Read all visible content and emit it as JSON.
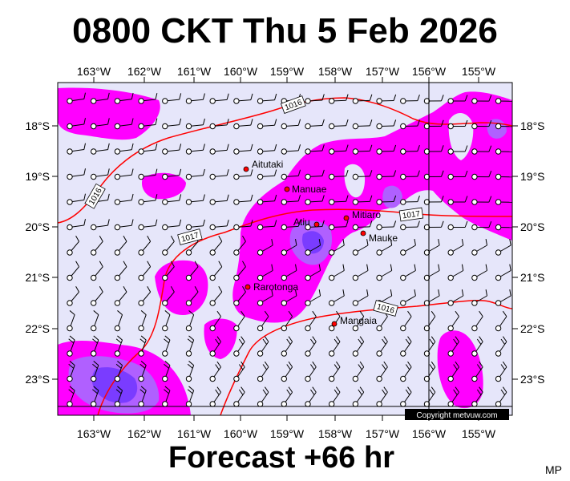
{
  "header": {
    "title": "0800 CKT Thu 5 Feb 2026"
  },
  "footer": {
    "forecast": "Forecast +66 hr",
    "initials": "MP"
  },
  "map": {
    "colors": {
      "background": "#e6e6fa",
      "rain_light": "#ff00ff",
      "rain_medium": "#b060ff",
      "rain_heavy": "#7a3cff",
      "isobar": "#ff0000",
      "place_marker": "#ff0000"
    },
    "lon_labels": [
      "163°W",
      "162°W",
      "161°W",
      "160°W",
      "159°W",
      "158°W",
      "157°W",
      "156°W",
      "155°W"
    ],
    "lat_labels": [
      "18°S",
      "19°S",
      "20°S",
      "21°S",
      "22°S",
      "23°S"
    ],
    "places": [
      {
        "name": "Aitutaki"
      },
      {
        "name": "Manuae"
      },
      {
        "name": "Atiu"
      },
      {
        "name": "Mitiaro"
      },
      {
        "name": "Mauke"
      },
      {
        "name": "Rarotonga"
      },
      {
        "name": "Mangaia"
      }
    ],
    "isobar_labels": [
      "1016",
      "1016",
      "1017",
      "1017",
      "1016"
    ],
    "copyright": "Copyright metvuw.com"
  }
}
